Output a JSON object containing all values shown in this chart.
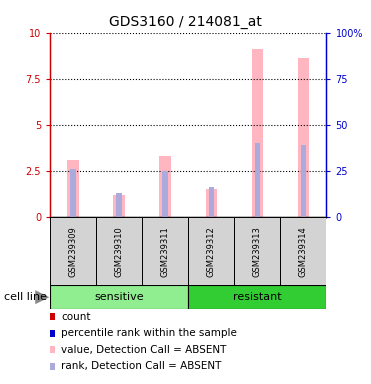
{
  "title": "GDS3160 / 214081_at",
  "samples": [
    "GSM239309",
    "GSM239310",
    "GSM239311",
    "GSM239312",
    "GSM239313",
    "GSM239314"
  ],
  "group_names": [
    "sensitive",
    "resistant"
  ],
  "group_colors": [
    "#90EE90",
    "#32CD32"
  ],
  "pink_values": [
    3.1,
    1.2,
    3.3,
    1.5,
    9.1,
    8.6
  ],
  "blue_values": [
    2.6,
    1.3,
    2.5,
    1.6,
    4.0,
    3.9
  ],
  "ylim_left": [
    0,
    10
  ],
  "ylim_right": [
    0,
    100
  ],
  "yticks_left": [
    0,
    2.5,
    5,
    7.5,
    10
  ],
  "yticks_right": [
    0,
    25,
    50,
    75,
    100
  ],
  "ytick_labels_left": [
    "0",
    "2.5",
    "5",
    "7.5",
    "10"
  ],
  "ytick_labels_right": [
    "0",
    "25",
    "50",
    "75",
    "100%"
  ],
  "left_axis_color": "#CC0000",
  "right_axis_color": "#0000CC",
  "pink_bar_color": "#FFB6C1",
  "blue_bar_color": "#AAAADD",
  "pink_bar_width": 0.25,
  "blue_bar_width": 0.12,
  "legend_items": [
    {
      "label": "count",
      "color": "#CC0000",
      "marker": "s"
    },
    {
      "label": "percentile rank within the sample",
      "color": "#0000CC",
      "marker": "s"
    },
    {
      "label": "value, Detection Call = ABSENT",
      "color": "#FFB6C1",
      "marker": "s"
    },
    {
      "label": "rank, Detection Call = ABSENT",
      "color": "#AAAADD",
      "marker": "s"
    }
  ],
  "cell_line_label": "cell line",
  "title_fontsize": 10,
  "tick_fontsize": 7,
  "label_fontsize": 7,
  "legend_fontsize": 7.5,
  "sample_label_fontsize": 6
}
